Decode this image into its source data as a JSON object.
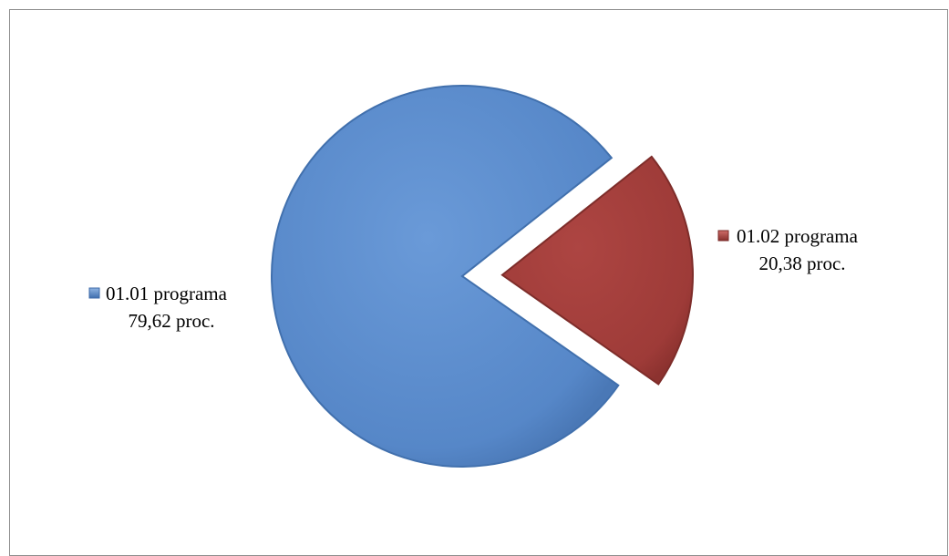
{
  "chart_data": {
    "type": "pie",
    "title": "",
    "exploded": true,
    "slices": [
      {
        "name": "01.01 programa",
        "value": 79.62,
        "value_label": "79,62 proc.",
        "color": "#5b8bcc",
        "edge_color": "#3d6aa8"
      },
      {
        "name": "01.02 programa",
        "value": 20.38,
        "value_label": "20,38 proc.",
        "color": "#a33d3a",
        "edge_color": "#7a2a27"
      }
    ]
  }
}
